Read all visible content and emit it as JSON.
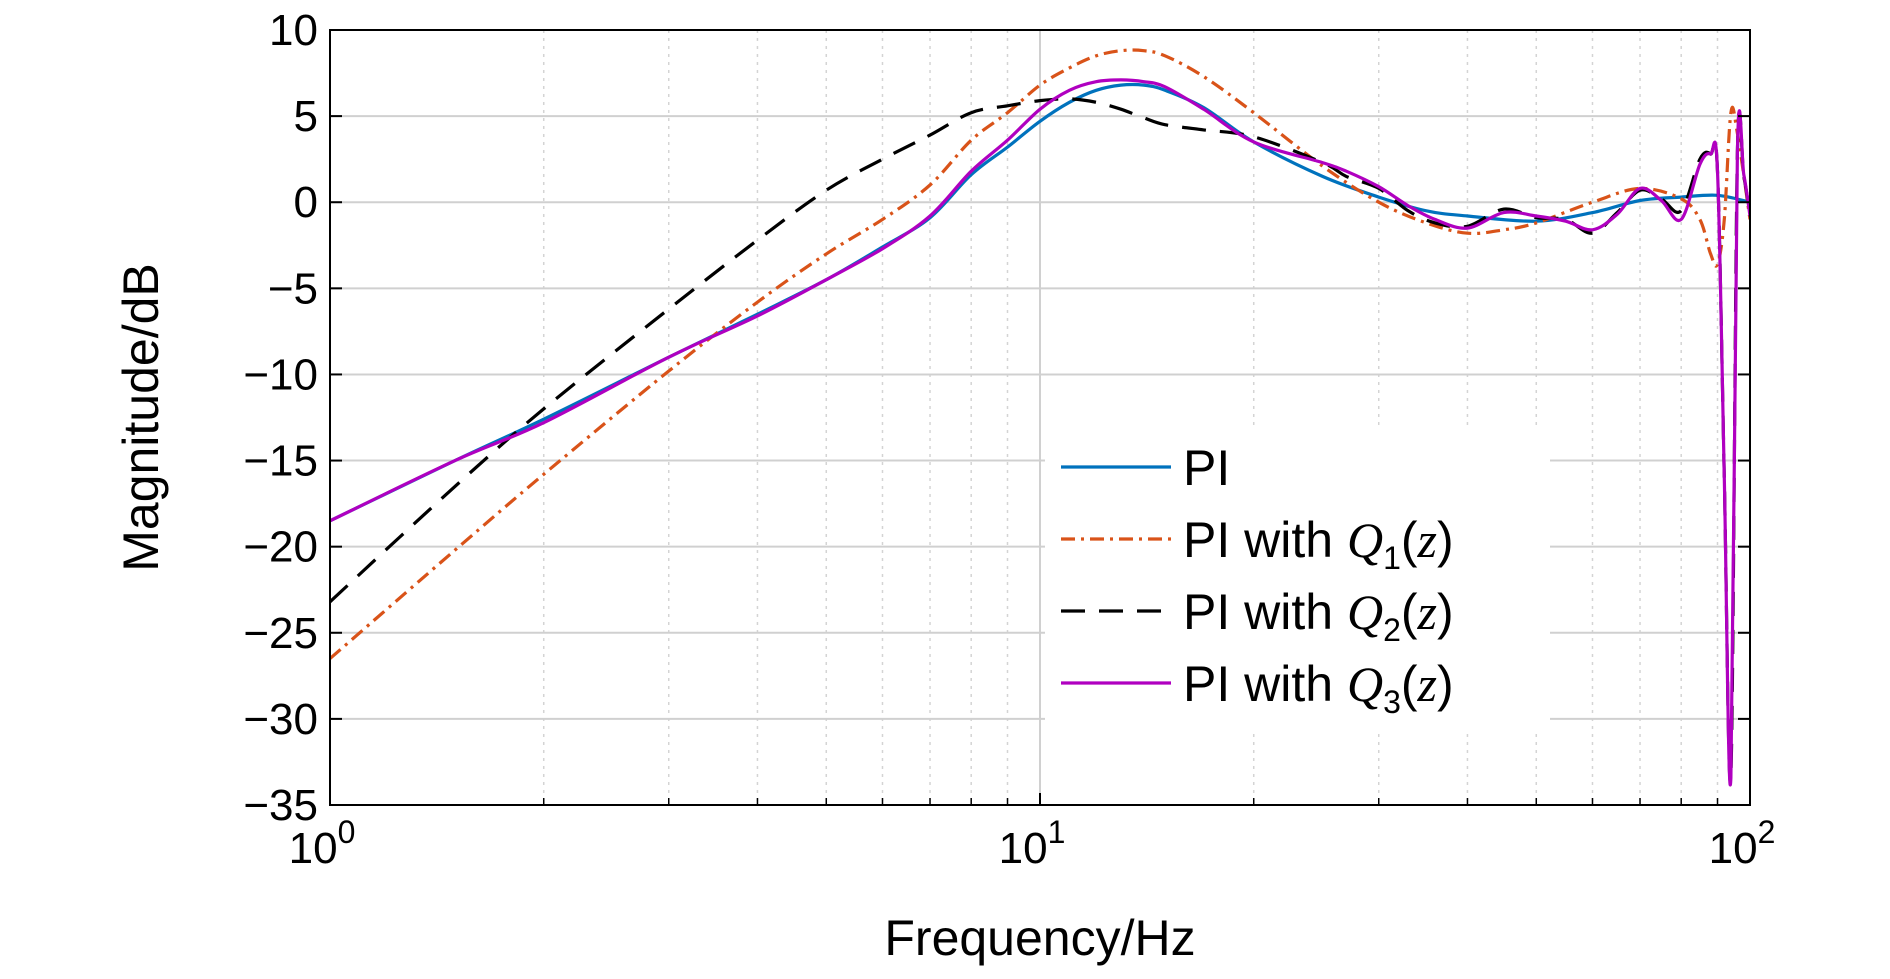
{
  "chart_data": {
    "type": "line",
    "xlabel": "Frequency/Hz",
    "ylabel": "Magnitude/dB",
    "x_scale": "log",
    "xlim": [
      1,
      100
    ],
    "ylim": [
      -35,
      10
    ],
    "grid": true,
    "legend_position": "center-right",
    "x_ticks": [
      {
        "value": 1,
        "base": "10",
        "exp": "0"
      },
      {
        "value": 10,
        "base": "10",
        "exp": "1"
      },
      {
        "value": 100,
        "base": "10",
        "exp": "2"
      }
    ],
    "y_ticks": [
      {
        "value": 10,
        "label": "10"
      },
      {
        "value": 5,
        "label": "5"
      },
      {
        "value": 0,
        "label": "0"
      },
      {
        "value": -5,
        "label": "−5"
      },
      {
        "value": -10,
        "label": "−10"
      },
      {
        "value": -15,
        "label": "−15"
      },
      {
        "value": -20,
        "label": "−20"
      },
      {
        "value": -25,
        "label": "−25"
      },
      {
        "value": -30,
        "label": "−30"
      },
      {
        "value": -35,
        "label": "−35"
      }
    ],
    "series": [
      {
        "name": "PI",
        "legend_prefix": "PI",
        "legend_q": "",
        "legend_sub": "",
        "color": "#0072BD",
        "dash": "none",
        "x": [
          1,
          1.5,
          2,
          3,
          4,
          5,
          6,
          7,
          8,
          9,
          10,
          11,
          12,
          13,
          14,
          15,
          17,
          20,
          25,
          30,
          35,
          40,
          50,
          60,
          70,
          80,
          90,
          100
        ],
        "y": [
          -18.5,
          -15,
          -12.6,
          -9,
          -6.5,
          -4.5,
          -2.6,
          -0.9,
          1.6,
          3.2,
          4.7,
          5.8,
          6.5,
          6.8,
          6.8,
          6.5,
          5.5,
          3.5,
          1.5,
          0.3,
          -0.5,
          -0.8,
          -1.1,
          -0.6,
          0.1,
          0.3,
          0.4,
          0
        ]
      },
      {
        "name": "PI with Q1(z)",
        "legend_prefix": "PI with ",
        "legend_q": "Q",
        "legend_sub": "1",
        "color": "#D95319",
        "dash": "14,6,3,6",
        "x": [
          1,
          1.5,
          2,
          3,
          4,
          5,
          6,
          7,
          8,
          9,
          10,
          11,
          12,
          13,
          14,
          15,
          17,
          20,
          25,
          30,
          35,
          40,
          45,
          50,
          60,
          70,
          80,
          85,
          88,
          90,
          92,
          94,
          96,
          100
        ],
        "y": [
          -26.5,
          -20.2,
          -15.8,
          -9.8,
          -5.8,
          -3,
          -1,
          1,
          3.6,
          5.2,
          6.8,
          7.8,
          8.5,
          8.8,
          8.8,
          8.5,
          7.3,
          5.2,
          2.1,
          0,
          -1.2,
          -1.8,
          -1.6,
          -1.2,
          0,
          0.8,
          0.2,
          -1,
          -3,
          -3.6,
          -1,
          5.2,
          4,
          -1
        ]
      },
      {
        "name": "PI with Q2(z)",
        "legend_prefix": "PI with ",
        "legend_q": "Q",
        "legend_sub": "2",
        "color": "#000000",
        "dash": "24,14",
        "x": [
          1,
          1.5,
          2,
          3,
          4,
          5,
          6,
          7,
          8,
          9,
          10,
          11,
          12,
          13,
          14,
          15,
          17,
          20,
          25,
          27,
          30,
          33,
          36,
          40,
          45,
          50,
          55,
          60,
          65,
          70,
          75,
          80,
          85,
          88,
          90,
          92,
          94,
          96,
          98,
          100
        ],
        "y": [
          -23.2,
          -16.5,
          -12,
          -6.2,
          -2.2,
          0.7,
          2.5,
          3.9,
          5.2,
          5.6,
          5.9,
          6,
          5.8,
          5.4,
          4.9,
          4.5,
          4.2,
          3.8,
          2.3,
          1.5,
          0.8,
          -0.5,
          -1.2,
          -1.4,
          -0.4,
          -0.9,
          -1,
          -1.8,
          -0.6,
          0.7,
          0.2,
          -0.5,
          2.5,
          2.8,
          1.8,
          -16,
          -33.2,
          2.9,
          1.5,
          -0.8
        ]
      },
      {
        "name": "PI with Q3(z)",
        "legend_prefix": "PI with ",
        "legend_q": "Q",
        "legend_sub": "3",
        "color": "#B000C0",
        "dash": "none",
        "x": [
          1,
          1.5,
          2,
          3,
          4,
          5,
          6,
          7,
          8,
          9,
          10,
          11,
          12,
          13,
          14,
          15,
          17,
          20,
          25,
          27,
          30,
          33,
          36,
          40,
          45,
          50,
          55,
          60,
          65,
          70,
          75,
          80,
          85,
          88,
          90,
          92,
          94,
          96,
          98,
          100
        ],
        "y": [
          -18.5,
          -15,
          -12.8,
          -9,
          -6.6,
          -4.5,
          -2.7,
          -0.8,
          1.8,
          3.6,
          5.4,
          6.5,
          7,
          7.1,
          7,
          6.7,
          5.4,
          3.5,
          2.3,
          1.8,
          0.9,
          -0.2,
          -1,
          -1.5,
          -0.6,
          -0.8,
          -1.1,
          -1.6,
          -0.7,
          0.8,
          0.1,
          -1,
          2.2,
          2.8,
          1.8,
          -16,
          -33.4,
          2.9,
          1.6,
          -0.8
        ]
      }
    ]
  }
}
